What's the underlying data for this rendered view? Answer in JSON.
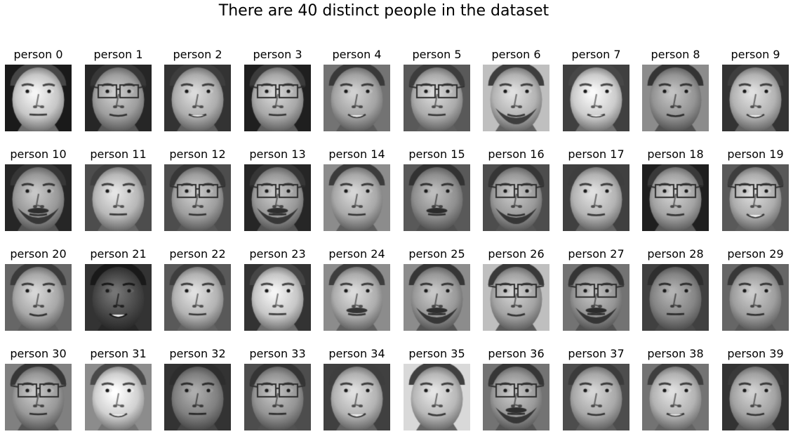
{
  "figure": {
    "title": "There are 40 distinct people in the dataset"
  },
  "gallery": {
    "columns": 10,
    "rows": 4,
    "colors": {
      "background": "#ffffff",
      "text": "#000000"
    },
    "people": [
      {
        "label": "person 0",
        "tone": 0.78,
        "glasses": false,
        "beard": false,
        "mustache": false,
        "smile": 0.1,
        "bg": 0.1
      },
      {
        "label": "person 1",
        "tone": 0.62,
        "glasses": true,
        "beard": false,
        "mustache": false,
        "smile": 0.4,
        "bg": 0.15
      },
      {
        "label": "person 2",
        "tone": 0.68,
        "glasses": false,
        "beard": false,
        "mustache": false,
        "smile": 0.6,
        "bg": 0.2
      },
      {
        "label": "person 3",
        "tone": 0.66,
        "glasses": true,
        "beard": false,
        "mustache": false,
        "smile": 0.2,
        "bg": 0.12
      },
      {
        "label": "person 4",
        "tone": 0.64,
        "glasses": false,
        "beard": false,
        "mustache": false,
        "smile": 0.8,
        "bg": 0.45
      },
      {
        "label": "person 5",
        "tone": 0.67,
        "glasses": true,
        "beard": false,
        "mustache": false,
        "smile": 0.2,
        "bg": 0.35
      },
      {
        "label": "person 6",
        "tone": 0.7,
        "glasses": false,
        "beard": true,
        "mustache": false,
        "smile": 0.5,
        "bg": 0.75
      },
      {
        "label": "person 7",
        "tone": 0.8,
        "glasses": false,
        "beard": false,
        "mustache": false,
        "smile": 0.6,
        "bg": 0.25
      },
      {
        "label": "person 8",
        "tone": 0.58,
        "glasses": false,
        "beard": false,
        "mustache": false,
        "smile": 0.5,
        "bg": 0.55
      },
      {
        "label": "person 9",
        "tone": 0.7,
        "glasses": false,
        "beard": false,
        "mustache": false,
        "smile": 0.8,
        "bg": 0.2
      },
      {
        "label": "person 10",
        "tone": 0.6,
        "glasses": false,
        "beard": true,
        "mustache": true,
        "smile": 0.3,
        "bg": 0.15
      },
      {
        "label": "person 11",
        "tone": 0.72,
        "glasses": false,
        "beard": false,
        "mustache": false,
        "smile": 0.1,
        "bg": 0.3
      },
      {
        "label": "person 12",
        "tone": 0.62,
        "glasses": true,
        "beard": false,
        "mustache": false,
        "smile": 0.2,
        "bg": 0.3
      },
      {
        "label": "person 13",
        "tone": 0.6,
        "glasses": true,
        "beard": true,
        "mustache": true,
        "smile": 0.1,
        "bg": 0.15
      },
      {
        "label": "person 14",
        "tone": 0.66,
        "glasses": false,
        "beard": false,
        "mustache": false,
        "smile": 0.2,
        "bg": 0.55
      },
      {
        "label": "person 15",
        "tone": 0.56,
        "glasses": false,
        "beard": false,
        "mustache": true,
        "smile": 0.2,
        "bg": 0.35
      },
      {
        "label": "person 16",
        "tone": 0.6,
        "glasses": true,
        "beard": true,
        "mustache": false,
        "smile": 0.4,
        "bg": 0.3
      },
      {
        "label": "person 17",
        "tone": 0.7,
        "glasses": false,
        "beard": false,
        "mustache": false,
        "smile": 0.3,
        "bg": 0.25
      },
      {
        "label": "person 18",
        "tone": 0.64,
        "glasses": true,
        "beard": false,
        "mustache": false,
        "smile": 0.3,
        "bg": 0.12
      },
      {
        "label": "person 19",
        "tone": 0.68,
        "glasses": true,
        "beard": false,
        "mustache": false,
        "smile": 0.9,
        "bg": 0.35
      },
      {
        "label": "person 20",
        "tone": 0.66,
        "glasses": false,
        "beard": false,
        "mustache": false,
        "smile": 0.5,
        "bg": 0.4
      },
      {
        "label": "person 21",
        "tone": 0.28,
        "glasses": false,
        "beard": false,
        "mustache": false,
        "smile": 0.9,
        "bg": 0.2
      },
      {
        "label": "person 22",
        "tone": 0.7,
        "glasses": false,
        "beard": false,
        "mustache": false,
        "smile": 0.2,
        "bg": 0.35
      },
      {
        "label": "person 23",
        "tone": 0.78,
        "glasses": false,
        "beard": false,
        "mustache": false,
        "smile": 0.1,
        "bg": 0.2
      },
      {
        "label": "person 24",
        "tone": 0.68,
        "glasses": false,
        "beard": false,
        "mustache": true,
        "smile": 0.3,
        "bg": 0.55
      },
      {
        "label": "person 25",
        "tone": 0.6,
        "glasses": false,
        "beard": true,
        "mustache": true,
        "smile": 0.1,
        "bg": 0.55
      },
      {
        "label": "person 26",
        "tone": 0.64,
        "glasses": true,
        "beard": false,
        "mustache": false,
        "smile": 0.5,
        "bg": 0.75
      },
      {
        "label": "person 27",
        "tone": 0.58,
        "glasses": true,
        "beard": true,
        "mustache": true,
        "smile": 0.1,
        "bg": 0.45
      },
      {
        "label": "person 28",
        "tone": 0.52,
        "glasses": false,
        "beard": false,
        "mustache": false,
        "smile": 0.1,
        "bg": 0.25
      },
      {
        "label": "person 29",
        "tone": 0.62,
        "glasses": false,
        "beard": false,
        "mustache": false,
        "smile": 0.3,
        "bg": 0.4
      },
      {
        "label": "person 30",
        "tone": 0.6,
        "glasses": true,
        "beard": false,
        "mustache": false,
        "smile": 0.2,
        "bg": 0.5
      },
      {
        "label": "person 31",
        "tone": 0.82,
        "glasses": false,
        "beard": false,
        "mustache": false,
        "smile": 0.8,
        "bg": 0.55
      },
      {
        "label": "person 32",
        "tone": 0.5,
        "glasses": false,
        "beard": false,
        "mustache": false,
        "smile": 0.1,
        "bg": 0.2
      },
      {
        "label": "person 33",
        "tone": 0.58,
        "glasses": true,
        "beard": false,
        "mustache": false,
        "smile": 0.1,
        "bg": 0.3
      },
      {
        "label": "person 34",
        "tone": 0.7,
        "glasses": false,
        "beard": false,
        "mustache": false,
        "smile": 0.9,
        "bg": 0.25
      },
      {
        "label": "person 35",
        "tone": 0.72,
        "glasses": false,
        "beard": false,
        "mustache": false,
        "smile": 0.5,
        "bg": 0.85
      },
      {
        "label": "person 36",
        "tone": 0.6,
        "glasses": true,
        "beard": true,
        "mustache": true,
        "smile": 0.1,
        "bg": 0.45
      },
      {
        "label": "person 37",
        "tone": 0.66,
        "glasses": false,
        "beard": false,
        "mustache": false,
        "smile": 0.4,
        "bg": 0.3
      },
      {
        "label": "person 38",
        "tone": 0.7,
        "glasses": false,
        "beard": false,
        "mustache": false,
        "smile": 0.6,
        "bg": 0.45
      },
      {
        "label": "person 39",
        "tone": 0.64,
        "glasses": false,
        "beard": false,
        "mustache": false,
        "smile": 0.4,
        "bg": 0.2
      }
    ]
  }
}
